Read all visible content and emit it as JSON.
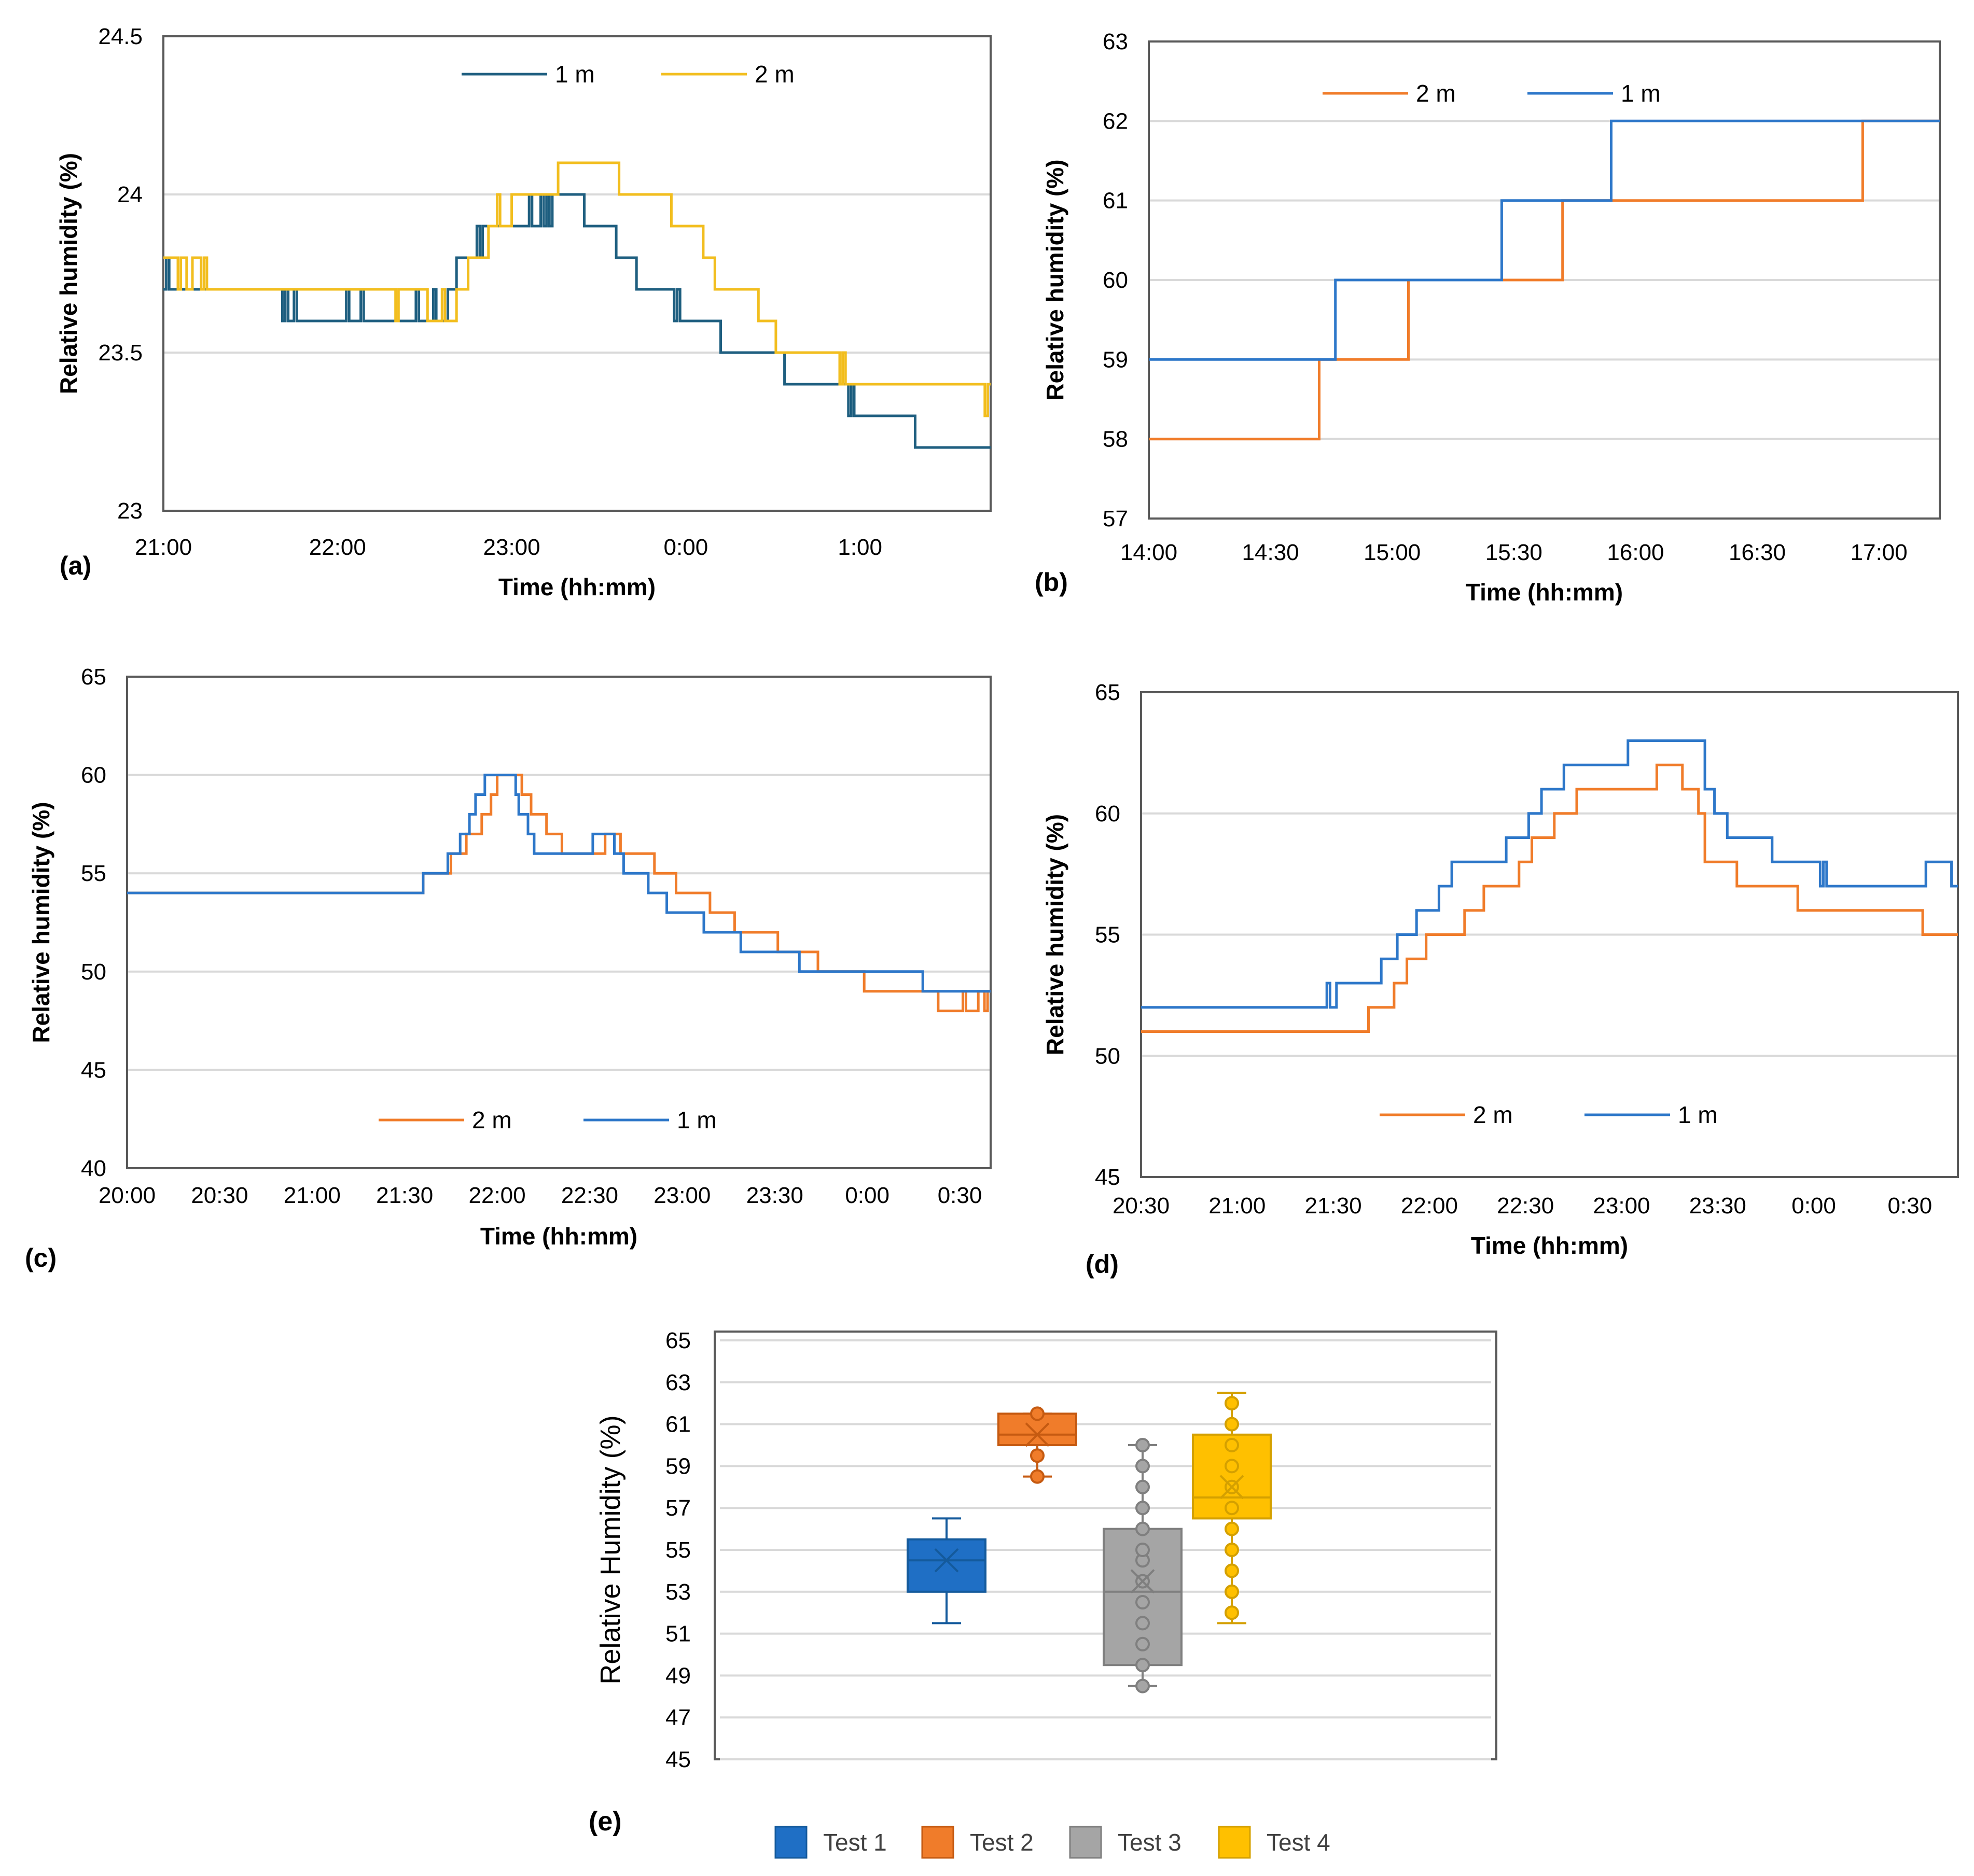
{
  "colors": {
    "grid": "#d9d9d9",
    "frame": "#595959",
    "text": "#000000",
    "a_1m": "#1f5f80",
    "a_2m": "#f2be1f",
    "orange": "#f07c2a",
    "blue": "#2d77c9",
    "test1": "#1f6fc5",
    "test2": "#f07c2a",
    "test3": "#a5a5a5",
    "test4": "#ffc000"
  },
  "chart_data": [
    {
      "id": "a",
      "type": "line",
      "panel_label": "(a)",
      "xlabel": "Time (hh:mm)",
      "ylabel": "Relative humidity (%)",
      "ylim": [
        23,
        24.5
      ],
      "yticks": [
        "23",
        "23.5",
        "24",
        "24.5"
      ],
      "yticks_values": [
        23,
        23.5,
        24,
        24.5
      ],
      "xlim": [
        0,
        285
      ],
      "xticks": [
        "21:00",
        "22:00",
        "23:00",
        "0:00",
        "1:00"
      ],
      "xticks_values": [
        0,
        60,
        120,
        180,
        240
      ],
      "grid": true,
      "legend": "top-center",
      "series": [
        {
          "name": "1 m",
          "color_key": "a_1m",
          "x": [
            0,
            1,
            2,
            3,
            40,
            41,
            42,
            43,
            44,
            45,
            46,
            62,
            63,
            64,
            67,
            68,
            69,
            86,
            87,
            88,
            92,
            93,
            94,
            97,
            98,
            100,
            101,
            104,
            107,
            108,
            109,
            110,
            111,
            125,
            126,
            127,
            129,
            130,
            131,
            132,
            133,
            134,
            140,
            142,
            143,
            144,
            145,
            154,
            156,
            158,
            163,
            175,
            176,
            177,
            178,
            182,
            184,
            188,
            192,
            212,
            214,
            218,
            223,
            230,
            236,
            237,
            238,
            239,
            259,
            285
          ],
          "y": [
            23.7,
            23.8,
            23.7,
            23.7,
            23.7,
            23.6,
            23.7,
            23.6,
            23.6,
            23.7,
            23.6,
            23.6,
            23.7,
            23.6,
            23.6,
            23.7,
            23.6,
            23.6,
            23.7,
            23.6,
            23.6,
            23.7,
            23.6,
            23.6,
            23.7,
            23.7,
            23.8,
            23.8,
            23.8,
            23.9,
            23.8,
            23.9,
            23.9,
            23.9,
            24.0,
            23.9,
            23.9,
            24.0,
            23.9,
            24.0,
            23.9,
            24.0,
            24.0,
            24.0,
            24.0,
            24.0,
            23.9,
            23.9,
            23.8,
            23.8,
            23.7,
            23.7,
            23.6,
            23.7,
            23.6,
            23.6,
            23.6,
            23.6,
            23.5,
            23.5,
            23.4,
            23.4,
            23.4,
            23.4,
            23.3,
            23.4,
            23.3,
            23.3,
            23.2,
            23.2
          ]
        },
        {
          "name": "2 m",
          "color_key": "a_2m",
          "x": [
            0,
            4,
            5,
            6,
            8,
            10,
            11,
            13,
            14,
            15,
            60,
            79,
            80,
            81,
            90,
            91,
            96,
            97,
            101,
            105,
            111,
            112,
            114,
            115,
            116,
            118,
            120,
            122,
            124,
            126,
            127,
            130,
            136,
            157,
            158,
            159,
            165,
            175,
            178,
            182,
            186,
            190,
            199,
            205,
            211,
            232,
            233,
            234,
            235,
            240,
            244,
            246,
            252,
            282,
            283,
            284,
            285
          ],
          "y": [
            23.8,
            23.8,
            23.7,
            23.8,
            23.7,
            23.8,
            23.8,
            23.7,
            23.8,
            23.7,
            23.7,
            23.7,
            23.6,
            23.7,
            23.7,
            23.6,
            23.7,
            23.6,
            23.7,
            23.8,
            23.8,
            23.9,
            23.9,
            24.0,
            23.9,
            23.9,
            24.0,
            24.0,
            24.0,
            24.0,
            24.0,
            24.0,
            24.1,
            24.0,
            24.0,
            24.0,
            24.0,
            23.9,
            23.9,
            23.9,
            23.8,
            23.7,
            23.7,
            23.6,
            23.5,
            23.5,
            23.4,
            23.5,
            23.4,
            23.4,
            23.4,
            23.4,
            23.4,
            23.4,
            23.3,
            23.4,
            23.4
          ]
        }
      ]
    },
    {
      "id": "b",
      "type": "line",
      "panel_label": "(b)",
      "xlabel": "Time (hh:mm)",
      "ylabel": "Relative humidity (%)",
      "ylim": [
        57,
        63
      ],
      "yticks": [
        "57",
        "58",
        "59",
        "60",
        "61",
        "62",
        "63"
      ],
      "yticks_values": [
        57,
        58,
        59,
        60,
        61,
        62,
        63
      ],
      "xlim": [
        0,
        195
      ],
      "xticks": [
        "14:00",
        "14:30",
        "15:00",
        "15:30",
        "16:00",
        "16:30",
        "17:00"
      ],
      "xticks_values": [
        0,
        30,
        60,
        90,
        120,
        150,
        180
      ],
      "grid": true,
      "legend": "top-left",
      "series": [
        {
          "name": "2 m",
          "color_key": "orange",
          "x": [
            0,
            41,
            42,
            63,
            64,
            101,
            102,
            175,
            176,
            195
          ],
          "y": [
            58,
            58,
            59,
            59,
            60,
            60,
            61,
            61,
            62,
            62
          ]
        },
        {
          "name": "1 m",
          "color_key": "blue",
          "x": [
            0,
            45,
            46,
            86,
            87,
            113,
            114,
            195
          ],
          "y": [
            59,
            59,
            60,
            60,
            61,
            61,
            62,
            62
          ]
        }
      ]
    },
    {
      "id": "c",
      "type": "line",
      "panel_label": "(c)",
      "xlabel": "Time (hh:mm)",
      "ylabel": "Relative humidity (%)",
      "ylim": [
        40,
        65
      ],
      "yticks": [
        "40",
        "45",
        "50",
        "55",
        "60",
        "65"
      ],
      "yticks_values": [
        40,
        45,
        50,
        55,
        60,
        65
      ],
      "xlim": [
        0,
        280
      ],
      "xticks": [
        "20:00",
        "20:30",
        "21:00",
        "21:30",
        "22:00",
        "22:30",
        "23:00",
        "23:30",
        "0:00",
        "0:30"
      ],
      "xticks_values": [
        0,
        30,
        60,
        90,
        120,
        150,
        180,
        210,
        240,
        270
      ],
      "grid": true,
      "legend": "bottom-center",
      "series": [
        {
          "name": "2 m",
          "color_key": "orange",
          "x": [
            0,
            95,
            96,
            104,
            105,
            107,
            110,
            112,
            115,
            116,
            118,
            119,
            120,
            125,
            128,
            131,
            136,
            141,
            153,
            155,
            158,
            160,
            171,
            178,
            189,
            197,
            211,
            224,
            230,
            236,
            239,
            244,
            246,
            250,
            253,
            258,
            262,
            263,
            264,
            268,
            270,
            271,
            272,
            275,
            276,
            277,
            278,
            279,
            280
          ],
          "y": [
            54,
            54,
            55,
            55,
            56,
            56,
            57,
            57,
            58,
            58,
            59,
            59,
            60,
            60,
            59,
            58,
            57,
            56,
            56,
            57,
            57,
            56,
            55,
            54,
            53,
            52,
            51,
            50,
            50,
            50,
            49,
            49,
            49,
            49,
            49,
            49,
            49,
            48,
            48,
            48,
            48,
            49,
            48,
            48,
            49,
            49,
            48,
            49,
            49
          ]
        },
        {
          "name": "1 m",
          "color_key": "blue",
          "x": [
            0,
            95,
            96,
            100,
            101,
            104,
            105,
            108,
            111,
            113,
            114,
            115,
            116,
            117,
            126,
            127,
            130,
            132,
            135,
            140,
            145,
            151,
            152,
            154,
            158,
            161,
            169,
            175,
            178,
            187,
            199,
            206,
            218,
            226,
            232,
            240,
            258,
            260,
            262,
            266,
            280
          ],
          "y": [
            54,
            54,
            55,
            55,
            55,
            56,
            56,
            57,
            58,
            59,
            59,
            59,
            60,
            60,
            59,
            58,
            57,
            56,
            56,
            56,
            56,
            57,
            57,
            57,
            56,
            55,
            54,
            53,
            53,
            52,
            51,
            51,
            50,
            50,
            50,
            50,
            49,
            49,
            49,
            49,
            49
          ]
        }
      ]
    },
    {
      "id": "d",
      "type": "line",
      "panel_label": "(d)",
      "xlabel": "Time (hh:mm)",
      "ylabel": "Relative humidity (%)",
      "ylim": [
        45,
        65
      ],
      "yticks": [
        "45",
        "50",
        "55",
        "60",
        "65"
      ],
      "yticks_values": [
        45,
        50,
        55,
        60,
        65
      ],
      "xlim": [
        0,
        255
      ],
      "xticks": [
        "20:30",
        "21:00",
        "21:30",
        "22:00",
        "22:30",
        "23:00",
        "23:30",
        "0:00",
        "0:30"
      ],
      "xticks_values": [
        0,
        30,
        60,
        90,
        120,
        150,
        180,
        210,
        240
      ],
      "grid": true,
      "legend": "bottom-center",
      "series": [
        {
          "name": "2 m",
          "color_key": "orange",
          "x": [
            0,
            70,
            71,
            75,
            76,
            79,
            83,
            89,
            96,
            101,
            107,
            118,
            122,
            129,
            136,
            151,
            161,
            166,
            169,
            174,
            176,
            186,
            201,
            205,
            229,
            233,
            244,
            255
          ],
          "y": [
            51,
            51,
            52,
            52,
            52,
            53,
            54,
            55,
            55,
            56,
            57,
            58,
            59,
            60,
            61,
            61,
            62,
            62,
            61,
            60,
            58,
            57,
            57,
            56,
            56,
            56,
            55,
            55
          ]
        },
        {
          "name": "1 m",
          "color_key": "blue",
          "x": [
            0,
            57,
            58,
            59,
            60,
            61,
            72,
            75,
            80,
            83,
            86,
            90,
            93,
            97,
            103,
            107,
            114,
            121,
            125,
            132,
            137,
            152,
            156,
            172,
            176,
            179,
            183,
            189,
            197,
            211,
            212,
            213,
            214,
            224,
            233,
            245,
            252,
            253,
            254,
            255
          ],
          "y": [
            52,
            52,
            53,
            52,
            52,
            53,
            53,
            54,
            55,
            55,
            56,
            56,
            57,
            58,
            58,
            58,
            59,
            60,
            61,
            62,
            62,
            63,
            63,
            63,
            61,
            60,
            59,
            59,
            58,
            58,
            57,
            58,
            57,
            57,
            57,
            58,
            58,
            57,
            57,
            57
          ]
        }
      ]
    },
    {
      "id": "e",
      "type": "box",
      "panel_label": "(e)",
      "ylabel": "Relative Humidity (%)",
      "ylim": [
        45,
        65
      ],
      "yticks": [
        "45",
        "47",
        "49",
        "51",
        "53",
        "55",
        "57",
        "59",
        "61",
        "63",
        "65"
      ],
      "yticks_values": [
        45,
        47,
        49,
        51,
        53,
        55,
        57,
        59,
        61,
        63,
        65
      ],
      "grid": true,
      "legend": "bottom-center",
      "series": [
        {
          "name": "Test 1",
          "color_key": "test1",
          "min": 51.5,
          "q1": 53,
          "median": 54.5,
          "q3": 55.5,
          "max": 56.5,
          "mean": 54.5,
          "points": []
        },
        {
          "name": "Test 2",
          "color_key": "test2",
          "min": 58.5,
          "q1": 60,
          "median": 60.5,
          "q3": 61.5,
          "max": 61.5,
          "mean": 60.5,
          "points": [
            58.5,
            59.5,
            61.5
          ]
        },
        {
          "name": "Test 3",
          "color_key": "test3",
          "min": 48.5,
          "q1": 49.5,
          "median": 53,
          "q3": 56,
          "max": 60,
          "mean": 53.5,
          "points": [
            48.5,
            49.5,
            50.5,
            51.5,
            52.5,
            53.5,
            54.5,
            55,
            56,
            57,
            58,
            59,
            60
          ]
        },
        {
          "name": "Test 4",
          "color_key": "test4",
          "min": 51.5,
          "q1": 56.5,
          "median": 57.5,
          "q3": 60.5,
          "max": 62.5,
          "mean": 58,
          "points": [
            52,
            53,
            54,
            55,
            56,
            57,
            58,
            59,
            60,
            61,
            62
          ]
        }
      ]
    }
  ]
}
